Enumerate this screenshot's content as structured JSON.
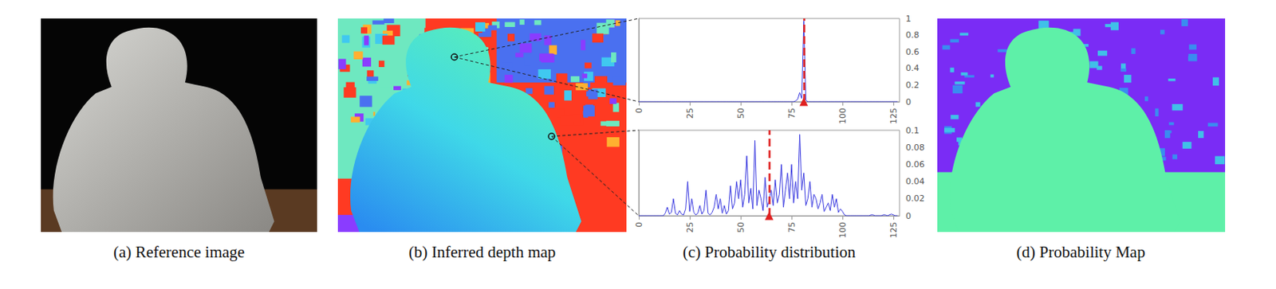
{
  "figure": {
    "captions": [
      "(a) Reference image",
      "(b) Inferred depth map",
      "(c) Probability distribution",
      "(d) Probability Map"
    ]
  },
  "chart_data": [
    {
      "type": "line",
      "x": [
        0,
        1,
        2,
        3,
        4,
        5,
        6,
        7,
        8,
        9,
        10,
        11,
        12,
        13,
        14,
        15,
        16,
        17,
        18,
        19,
        20,
        21,
        22,
        23,
        24,
        25,
        26,
        27,
        28,
        29,
        30,
        31,
        32,
        33,
        34,
        35,
        36,
        37,
        38,
        39,
        40,
        41,
        42,
        43,
        44,
        45,
        46,
        47,
        48,
        49,
        50,
        51,
        52,
        53,
        54,
        55,
        56,
        57,
        58,
        59,
        60,
        61,
        62,
        63,
        64,
        65,
        66,
        67,
        68,
        69,
        70,
        71,
        72,
        73,
        74,
        75,
        76,
        77,
        78,
        79,
        80,
        81,
        82,
        83,
        84,
        85,
        86,
        87,
        88,
        89,
        90,
        91,
        92,
        93,
        94,
        95,
        96,
        97,
        98,
        99,
        100,
        101,
        102,
        103,
        104,
        105,
        106,
        107,
        108,
        109,
        110,
        111,
        112,
        113,
        114,
        115,
        116,
        117,
        118,
        119,
        120,
        121,
        122,
        123,
        124,
        125,
        126,
        127
      ],
      "series": [
        {
          "color": "#3a3adf",
          "values": [
            0,
            0,
            0,
            0,
            0,
            0,
            0,
            0,
            0,
            0,
            0,
            0,
            0,
            0,
            0,
            0,
            0,
            0,
            0,
            0,
            0,
            0,
            0,
            0,
            0,
            0,
            0,
            0,
            0,
            0,
            0,
            0,
            0,
            0,
            0,
            0,
            0,
            0,
            0,
            0,
            0,
            0,
            0,
            0,
            0,
            0,
            0,
            0,
            0,
            0,
            0,
            0,
            0,
            0,
            0,
            0,
            0,
            0,
            0,
            0,
            0,
            0,
            0,
            0,
            0,
            0,
            0,
            0,
            0,
            0,
            0,
            0,
            0,
            0,
            0,
            0,
            0,
            0.01,
            0.03,
            0.11,
            0.04,
            0.97,
            0.02,
            0,
            0,
            0,
            0,
            0,
            0,
            0,
            0,
            0,
            0,
            0,
            0,
            0,
            0,
            0,
            0,
            0,
            0,
            0,
            0,
            0,
            0,
            0,
            0,
            0,
            0,
            0,
            0,
            0,
            0,
            0,
            0,
            0,
            0,
            0,
            0,
            0,
            0,
            0,
            0,
            0,
            0,
            0,
            0,
            0
          ]
        }
      ],
      "annotations": [
        {
          "x": 81,
          "color": "#e02020",
          "line_style": "dashed",
          "marker": "triangle"
        }
      ],
      "xlim": [
        0,
        128
      ],
      "xticks": [
        0,
        25,
        50,
        75,
        100,
        125
      ],
      "ylim": [
        0,
        1
      ],
      "yticks": [
        0,
        0.2,
        0.4,
        0.6,
        0.8,
        1
      ],
      "grid": false
    },
    {
      "type": "line",
      "x": [
        0,
        1,
        2,
        3,
        4,
        5,
        6,
        7,
        8,
        9,
        10,
        11,
        12,
        13,
        14,
        15,
        16,
        17,
        18,
        19,
        20,
        21,
        22,
        23,
        24,
        25,
        26,
        27,
        28,
        29,
        30,
        31,
        32,
        33,
        34,
        35,
        36,
        37,
        38,
        39,
        40,
        41,
        42,
        43,
        44,
        45,
        46,
        47,
        48,
        49,
        50,
        51,
        52,
        53,
        54,
        55,
        56,
        57,
        58,
        59,
        60,
        61,
        62,
        63,
        64,
        65,
        66,
        67,
        68,
        69,
        70,
        71,
        72,
        73,
        74,
        75,
        76,
        77,
        78,
        79,
        80,
        81,
        82,
        83,
        84,
        85,
        86,
        87,
        88,
        89,
        90,
        91,
        92,
        93,
        94,
        95,
        96,
        97,
        98,
        99,
        100,
        101,
        102,
        103,
        104,
        105,
        106,
        107,
        108,
        109,
        110,
        111,
        112,
        113,
        114,
        115,
        116,
        117,
        118,
        119,
        120,
        121,
        122,
        123,
        124,
        125,
        126,
        127
      ],
      "series": [
        {
          "color": "#3a3adf",
          "values": [
            0,
            0,
            0,
            0,
            0,
            0,
            0,
            0,
            0,
            0,
            0,
            0,
            0,
            0.003,
            0.01,
            0.002,
            0.004,
            0.02,
            0.003,
            0.001,
            0.006,
            0.002,
            0.001,
            0.008,
            0.04,
            0.005,
            0.02,
            0.004,
            0.001,
            0.003,
            0.012,
            0.002,
            0.006,
            0.03,
            0.003,
            0.001,
            0.004,
            0.01,
            0.025,
            0.008,
            0.02,
            0.003,
            0.012,
            0.002,
            0.006,
            0.035,
            0.008,
            0.015,
            0.04,
            0.02,
            0.042,
            0.01,
            0.025,
            0.07,
            0.015,
            0.032,
            0.008,
            0.088,
            0.012,
            0.03,
            0.02,
            0.006,
            0.045,
            0.01,
            0.018,
            0.03,
            0.012,
            0.042,
            0.015,
            0.025,
            0.06,
            0.01,
            0.03,
            0.05,
            0.02,
            0.06,
            0.015,
            0.04,
            0.02,
            0.095,
            0.03,
            0.05,
            0.012,
            0.02,
            0.04,
            0.01,
            0.025,
            0.02,
            0.008,
            0.015,
            0.025,
            0.005,
            0.01,
            0.015,
            0.006,
            0.025,
            0.01,
            0.02,
            0.004,
            0.008,
            0.005,
            0.001,
            0,
            0,
            0,
            0,
            0,
            0,
            0,
            0,
            0,
            0,
            0,
            0,
            0.001,
            0.001,
            0,
            0,
            0,
            0,
            0.001,
            0.001,
            0,
            0.001,
            0.002,
            0.001,
            0,
            0
          ]
        }
      ],
      "annotations": [
        {
          "x": 64,
          "color": "#e02020",
          "line_style": "dashed",
          "marker": "triangle"
        }
      ],
      "xlim": [
        0,
        128
      ],
      "xticks": [
        0,
        25,
        50,
        75,
        100,
        125
      ],
      "ylim": [
        0,
        0.1
      ],
      "yticks": [
        0,
        0.02,
        0.04,
        0.06,
        0.08,
        0.1
      ],
      "grid": false
    }
  ]
}
